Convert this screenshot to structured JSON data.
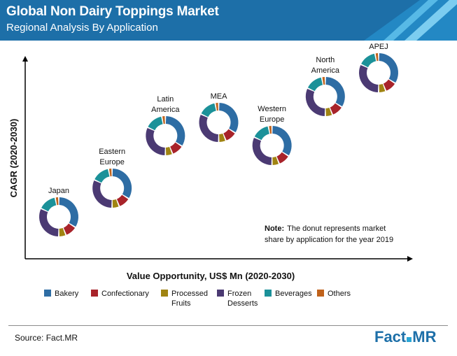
{
  "header": {
    "title": "Global Non Dairy Toppings Market",
    "subtitle": "Regional Analysis  By Application"
  },
  "colors": {
    "header_bg": "#1d6fa8",
    "bakery": "#2e6da4",
    "confectionary": "#a8232a",
    "processed_fruits": "#a08412",
    "frozen_desserts": "#4b3a73",
    "beverages": "#1b9199",
    "others": "#c0621b",
    "accent": "#2aa7d6"
  },
  "chart_data": {
    "type": "donut-scatter",
    "xlabel": "Value Opportunity, US$ Mn (2020-2030)",
    "ylabel": "CAGR (2020-2030)",
    "note_bold": "Note:",
    "note_lines": [
      "The donut represents market",
      "share by application for the year 2019"
    ],
    "segments": [
      "Bakery",
      "Confectionary",
      "Processed Fruits",
      "Frozen Desserts",
      "Beverages",
      "Others"
    ],
    "legend": [
      {
        "lines": [
          "Bakery"
        ],
        "color": "#2e6da4"
      },
      {
        "lines": [
          "Confectionary"
        ],
        "color": "#a8232a"
      },
      {
        "lines": [
          "Processed",
          "Fruits"
        ],
        "color": "#a08412"
      },
      {
        "lines": [
          "Frozen",
          "Desserts"
        ],
        "color": "#4b3a73"
      },
      {
        "lines": [
          "Beverages"
        ],
        "color": "#1b9199"
      },
      {
        "lines": [
          "Others"
        ],
        "color": "#c0621b"
      }
    ],
    "regions": [
      {
        "name": "Japan",
        "label_lines": [
          "Japan"
        ],
        "value_rank": 1,
        "cagr_rank": 1,
        "shares": [
          34,
          10,
          6,
          32,
          15,
          3
        ]
      },
      {
        "name": "Eastern Europe",
        "label_lines": [
          "Eastern",
          "Europe"
        ],
        "value_rank": 2,
        "cagr_rank": 2,
        "shares": [
          34,
          10,
          6,
          32,
          15,
          3
        ]
      },
      {
        "name": "Latin America",
        "label_lines": [
          "Latin",
          "America"
        ],
        "value_rank": 3,
        "cagr_rank": 4,
        "shares": [
          34,
          10,
          6,
          32,
          15,
          3
        ]
      },
      {
        "name": "MEA",
        "label_lines": [
          "MEA"
        ],
        "value_rank": 4,
        "cagr_rank": 5,
        "shares": [
          34,
          10,
          6,
          32,
          15,
          3
        ]
      },
      {
        "name": "Western Europe",
        "label_lines": [
          "Western",
          "Europe"
        ],
        "value_rank": 5,
        "cagr_rank": 3,
        "shares": [
          34,
          10,
          6,
          32,
          15,
          3
        ]
      },
      {
        "name": "North America",
        "label_lines": [
          "North",
          "America"
        ],
        "value_rank": 6,
        "cagr_rank": 6,
        "shares": [
          34,
          10,
          6,
          32,
          15,
          3
        ]
      },
      {
        "name": "APEJ",
        "label_lines": [
          "APEJ"
        ],
        "value_rank": 7,
        "cagr_rank": 7,
        "shares": [
          34,
          10,
          6,
          32,
          15,
          3
        ]
      }
    ]
  },
  "footer": {
    "source": "Source: Fact.MR",
    "logo_part1": "Fact",
    "logo_part2": "MR"
  }
}
